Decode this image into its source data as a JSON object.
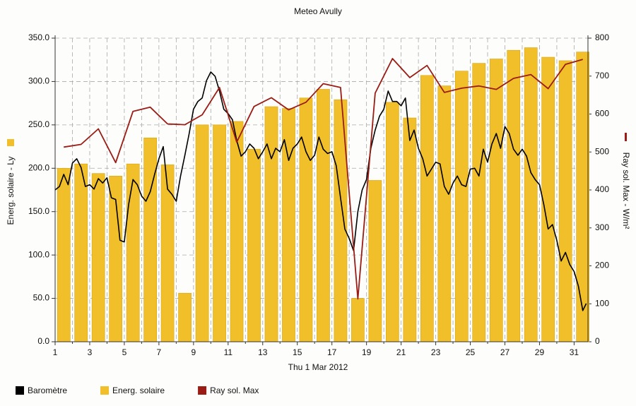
{
  "chart_data": {
    "type": "combo",
    "title": "Meteo Avully",
    "xlabel": "Thu 1 Mar 2012",
    "ylabel": "Energ. solaire - Ly",
    "y2label": "Ray sol. Max - W/m²",
    "xlim": [
      1,
      31.8
    ],
    "xticks": [
      1,
      3,
      5,
      7,
      9,
      11,
      13,
      15,
      17,
      19,
      21,
      23,
      25,
      27,
      29,
      31
    ],
    "xminorticks": [
      2,
      4,
      6,
      8,
      10,
      12,
      14,
      16,
      18,
      20,
      22,
      24,
      26,
      28,
      30
    ],
    "ylim": [
      0,
      350
    ],
    "yticks": [
      {
        "value": 0,
        "label": "0.0"
      },
      {
        "value": 50,
        "label": "50.0"
      },
      {
        "value": 100,
        "label": "100.0"
      },
      {
        "value": 150,
        "label": "150.0"
      },
      {
        "value": 200,
        "label": "200.0"
      },
      {
        "value": 250,
        "label": "250.0"
      },
      {
        "value": 300,
        "label": "300.0"
      },
      {
        "value": 350,
        "label": "350.0"
      }
    ],
    "y2lim": [
      0,
      800
    ],
    "y2ticks": [
      0,
      100,
      200,
      300,
      400,
      500,
      600,
      700,
      800
    ],
    "grid": true,
    "series": [
      {
        "name": "Baromètre",
        "type": "line",
        "color": "#000000",
        "x": [
          1,
          1.25,
          1.5,
          1.75,
          2,
          2.25,
          2.5,
          2.75,
          3,
          3.25,
          3.5,
          3.75,
          4,
          4.25,
          4.5,
          4.75,
          5,
          5.25,
          5.5,
          5.75,
          6,
          6.25,
          6.5,
          6.75,
          7,
          7.25,
          7.5,
          7.75,
          8,
          8.25,
          8.5,
          8.75,
          9,
          9.25,
          9.5,
          9.75,
          10,
          10.25,
          10.5,
          10.75,
          11,
          11.25,
          11.5,
          11.75,
          12,
          12.25,
          12.5,
          12.75,
          13,
          13.25,
          13.5,
          13.75,
          14,
          14.25,
          14.5,
          14.75,
          15,
          15.25,
          15.5,
          15.75,
          16,
          16.25,
          16.5,
          16.75,
          17,
          17.25,
          17.5,
          17.75,
          18,
          18.25,
          18.5,
          18.75,
          19,
          19.25,
          19.5,
          19.75,
          20,
          20.25,
          20.5,
          20.75,
          21,
          21.25,
          21.5,
          21.75,
          22,
          22.25,
          22.5,
          22.75,
          23,
          23.25,
          23.5,
          23.75,
          24,
          24.25,
          24.5,
          24.75,
          25,
          25.25,
          25.5,
          25.75,
          26,
          26.25,
          26.5,
          26.75,
          27,
          27.25,
          27.5,
          27.75,
          28,
          28.25,
          28.5,
          28.75,
          29,
          29.25,
          29.5,
          29.75,
          30,
          30.25,
          30.5,
          30.75,
          31,
          31.25,
          31.5,
          31.7
        ],
        "values": [
          175,
          179,
          193,
          181,
          206,
          211,
          201,
          179,
          181,
          176,
          188,
          183,
          189,
          166,
          164,
          117,
          115,
          158,
          187,
          181,
          168,
          162,
          173,
          193,
          211,
          225,
          176,
          170,
          162,
          191,
          215,
          240,
          268,
          277,
          281,
          301,
          311,
          306,
          289,
          268,
          263,
          256,
          232,
          214,
          219,
          228,
          223,
          211,
          219,
          228,
          211,
          223,
          219,
          233,
          209,
          223,
          228,
          236,
          219,
          209,
          215,
          236,
          222,
          217,
          219,
          203,
          166,
          130,
          119,
          105,
          150,
          175,
          187,
          223,
          244,
          260,
          268,
          289,
          277,
          277,
          272,
          281,
          232,
          244,
          223,
          211,
          191,
          199,
          207,
          205,
          179,
          170,
          183,
          191,
          181,
          179,
          199,
          200,
          191,
          222,
          207,
          228,
          240,
          223,
          248,
          240,
          222,
          215,
          222,
          214,
          195,
          187,
          181,
          158,
          130,
          135,
          117,
          93,
          103,
          89,
          81,
          64,
          36,
          44
        ]
      },
      {
        "name": "Energ. solaire",
        "type": "bar",
        "color": "#f0bf2a",
        "x": [
          1.5,
          2.5,
          3.5,
          4.5,
          5.5,
          6.5,
          7.5,
          8.5,
          9.5,
          10.5,
          11.5,
          12.5,
          13.5,
          14.5,
          15.5,
          16.5,
          17.5,
          18.5,
          19.5,
          20.5,
          21.5,
          22.5,
          23.5,
          24.5,
          25.5,
          26.5,
          27.5,
          28.5,
          29.5,
          30.5,
          31.5
        ],
        "values": [
          200,
          205,
          194,
          191,
          205,
          235,
          204,
          56,
          250,
          250,
          254,
          222,
          271,
          269,
          281,
          291,
          279,
          50,
          186,
          276,
          258,
          307,
          295,
          312,
          321,
          326,
          336,
          339,
          328,
          324,
          334
        ]
      },
      {
        "name": "Ray sol. Max",
        "type": "line",
        "axis": "y2",
        "color": "#9b1c14",
        "x": [
          1.5,
          2.5,
          3.5,
          4.5,
          5.5,
          6.5,
          7.5,
          8.5,
          9.5,
          10.5,
          11.5,
          12.5,
          13.5,
          14.5,
          15.5,
          16.5,
          17.5,
          18.5,
          19.5,
          20.5,
          21.5,
          22.5,
          23.5,
          24.5,
          25.5,
          26.5,
          27.5,
          28.5,
          29.5,
          30.5,
          31.5
        ],
        "values": [
          513,
          520,
          561,
          472,
          607,
          618,
          574,
          572,
          598,
          670,
          526,
          620,
          643,
          611,
          631,
          680,
          670,
          113,
          655,
          746,
          696,
          728,
          657,
          668,
          674,
          665,
          694,
          704,
          667,
          731,
          744
        ]
      }
    ]
  }
}
